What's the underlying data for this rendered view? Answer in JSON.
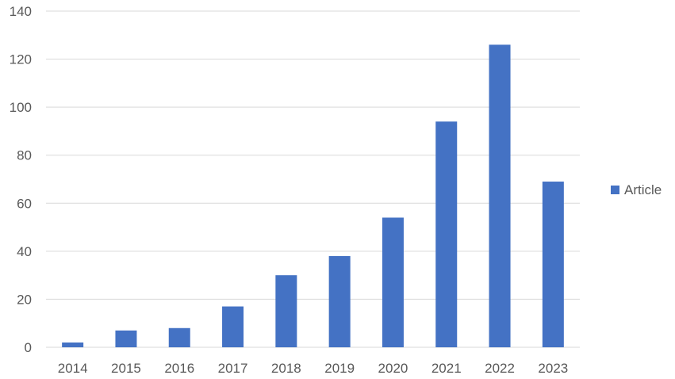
{
  "chart_data": {
    "type": "bar",
    "title": "",
    "xlabel": "",
    "ylabel": "",
    "categories": [
      "2014",
      "2015",
      "2016",
      "2017",
      "2018",
      "2019",
      "2020",
      "2021",
      "2022",
      "2023"
    ],
    "series": [
      {
        "name": "Article",
        "color": "#4472C4",
        "values": [
          2,
          7,
          8,
          17,
          30,
          38,
          54,
          94,
          126,
          69
        ]
      }
    ],
    "ylim": [
      0,
      140
    ],
    "yticks": [
      0,
      20,
      40,
      60,
      80,
      100,
      120,
      140
    ],
    "grid": true,
    "legend_position": "right"
  }
}
